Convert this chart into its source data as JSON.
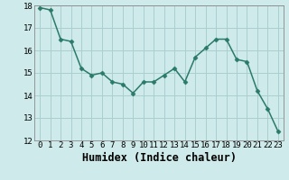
{
  "x": [
    0,
    1,
    2,
    3,
    4,
    5,
    6,
    7,
    8,
    9,
    10,
    11,
    12,
    13,
    14,
    15,
    16,
    17,
    18,
    19,
    20,
    21,
    22,
    23
  ],
  "y": [
    17.9,
    17.8,
    16.5,
    16.4,
    15.2,
    14.9,
    15.0,
    14.6,
    14.5,
    14.1,
    14.6,
    14.6,
    14.9,
    15.2,
    14.6,
    15.7,
    16.1,
    16.5,
    16.5,
    15.6,
    15.5,
    14.2,
    13.4,
    12.4
  ],
  "xlabel": "Humidex (Indice chaleur)",
  "ylim": [
    12,
    18
  ],
  "xlim_min": -0.5,
  "xlim_max": 23.5,
  "yticks": [
    12,
    13,
    14,
    15,
    16,
    17,
    18
  ],
  "xticks": [
    0,
    1,
    2,
    3,
    4,
    5,
    6,
    7,
    8,
    9,
    10,
    11,
    12,
    13,
    14,
    15,
    16,
    17,
    18,
    19,
    20,
    21,
    22,
    23
  ],
  "line_color": "#2a7a6a",
  "marker": "D",
  "marker_size": 2.5,
  "bg_color": "#ceeaea",
  "grid_color": "#aacece",
  "tick_label_fontsize": 6.5,
  "xlabel_fontsize": 8.5,
  "linewidth": 1.1
}
